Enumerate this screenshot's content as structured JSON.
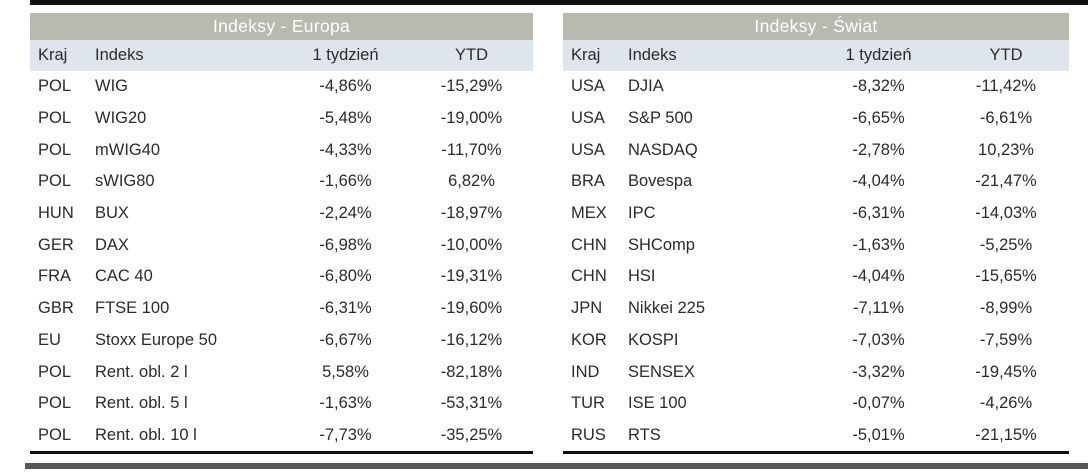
{
  "colors": {
    "title_bg": "#b9b9b0",
    "title_text": "#ffffff",
    "header_bg": "#dee5ec",
    "body_text": "#2b2b2b",
    "top_rule": "#101010",
    "table_bottom_rule": "#111111",
    "page_bottom_rule": "#565656"
  },
  "tables": [
    {
      "title": "Indeksy - Europa",
      "columns": [
        "Kraj",
        "Indeks",
        "1 tydzień",
        "YTD"
      ],
      "rows": [
        [
          "POL",
          "WIG",
          "-4,86%",
          "-15,29%"
        ],
        [
          "POL",
          "WIG20",
          "-5,48%",
          "-19,00%"
        ],
        [
          "POL",
          "mWIG40",
          "-4,33%",
          "-11,70%"
        ],
        [
          "POL",
          "sWIG80",
          "-1,66%",
          "6,82%"
        ],
        [
          "HUN",
          "BUX",
          "-2,24%",
          "-18,97%"
        ],
        [
          "GER",
          "DAX",
          "-6,98%",
          "-10,00%"
        ],
        [
          "FRA",
          "CAC 40",
          "-6,80%",
          "-19,31%"
        ],
        [
          "GBR",
          "FTSE 100",
          "-6,31%",
          "-19,60%"
        ],
        [
          "EU",
          "Stoxx Europe 50",
          "-6,67%",
          "-16,12%"
        ],
        [
          "POL",
          "Rent. obl. 2 l",
          "5,58%",
          "-82,18%"
        ],
        [
          "POL",
          "Rent. obl. 5 l",
          "-1,63%",
          "-53,31%"
        ],
        [
          "POL",
          "Rent. obl. 10 l",
          "-7,73%",
          "-35,25%"
        ]
      ]
    },
    {
      "title": "Indeksy - Świat",
      "columns": [
        "Kraj",
        "Indeks",
        "1 tydzień",
        "YTD"
      ],
      "rows": [
        [
          "USA",
          "DJIA",
          "-8,32%",
          "-11,42%"
        ],
        [
          "USA",
          "S&P 500",
          "-6,65%",
          "-6,61%"
        ],
        [
          "USA",
          "NASDAQ",
          "-2,78%",
          "10,23%"
        ],
        [
          "BRA",
          "Bovespa",
          "-4,04%",
          "-21,47%"
        ],
        [
          "MEX",
          "IPC",
          "-6,31%",
          "-14,03%"
        ],
        [
          "CHN",
          "SHComp",
          "-1,63%",
          "-5,25%"
        ],
        [
          "CHN",
          "HSI",
          "-4,04%",
          "-15,65%"
        ],
        [
          "JPN",
          "Nikkei 225",
          "-7,11%",
          "-8,99%"
        ],
        [
          "KOR",
          "KOSPI",
          "-7,03%",
          "-7,59%"
        ],
        [
          "IND",
          "SENSEX",
          "-3,32%",
          "-19,45%"
        ],
        [
          "TUR",
          "ISE 100",
          "-0,07%",
          "-4,26%"
        ],
        [
          "RUS",
          "RTS",
          "-5,01%",
          "-21,15%"
        ]
      ]
    }
  ]
}
